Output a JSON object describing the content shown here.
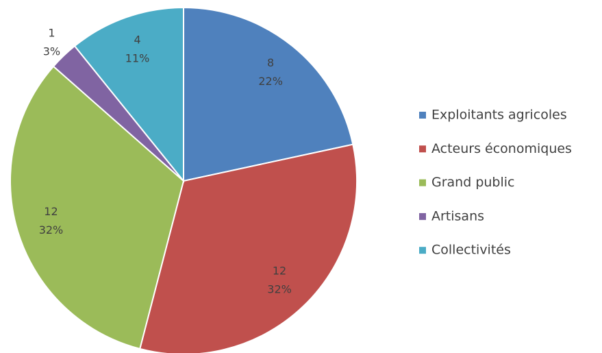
{
  "chart_data": {
    "type": "pie",
    "categories": [
      "Exploitants agricoles",
      "Acteurs économiques",
      "Grand public",
      "Artisans",
      "Collectivités"
    ],
    "values": [
      8,
      12,
      12,
      1,
      4
    ],
    "percent_labels": [
      "22%",
      "32%",
      "32%",
      "3%",
      "11%"
    ],
    "colors": [
      "#4f81bd",
      "#c0504d",
      "#9bbb59",
      "#8064a2",
      "#4bacc6"
    ],
    "legend": "right"
  }
}
